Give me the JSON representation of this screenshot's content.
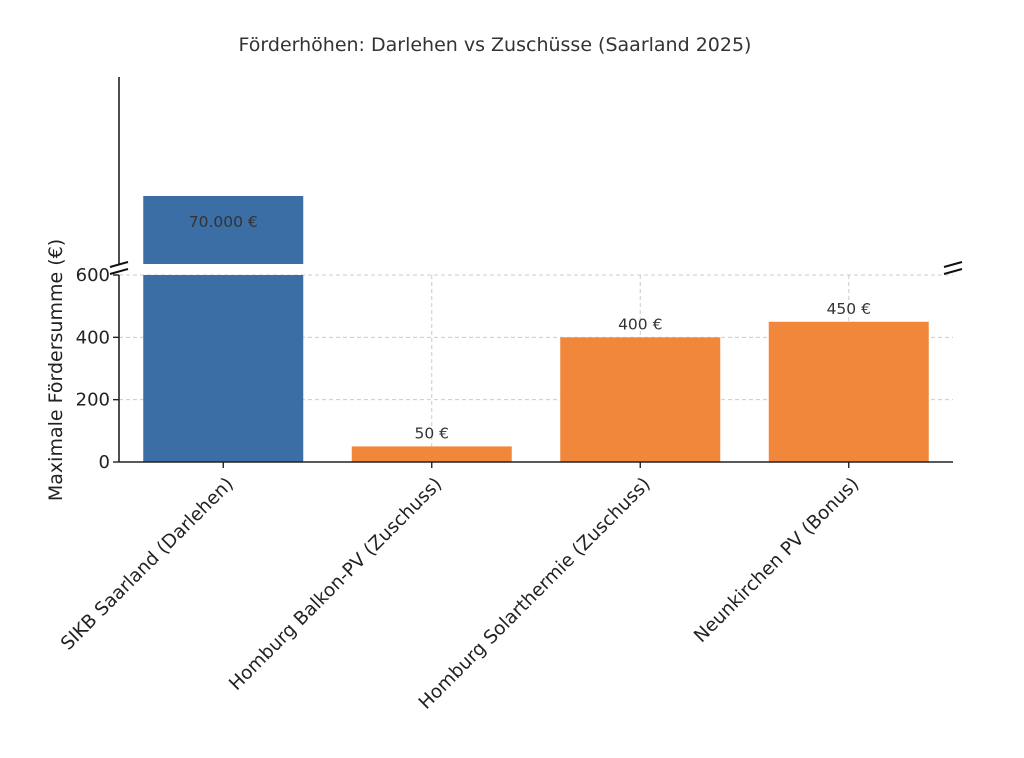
{
  "chart_data": {
    "type": "bar",
    "title": "Förderhöhen: Darlehen vs Zuschüsse (Saarland 2025)",
    "ylabel": "Maximale Fördersumme (€)",
    "xlabel": "",
    "categories": [
      "SIKB Saarland (Darlehen)",
      "Homburg Balkon-PV (Zuschuss)",
      "Homburg Solarthermie (Zuschuss)",
      "Neunkirchen PV (Bonus)"
    ],
    "values": [
      70000,
      50,
      400,
      450
    ],
    "data_labels": [
      "70.000 €",
      "50 €",
      "400 €",
      "450 €"
    ],
    "colors": [
      "#3a6ea5",
      "#f0873a",
      "#f0873a",
      "#f0873a"
    ],
    "ylim": [
      0,
      600
    ],
    "yticks": [
      "0",
      "200",
      "400",
      "600"
    ],
    "axis_break": true,
    "grid": true
  }
}
